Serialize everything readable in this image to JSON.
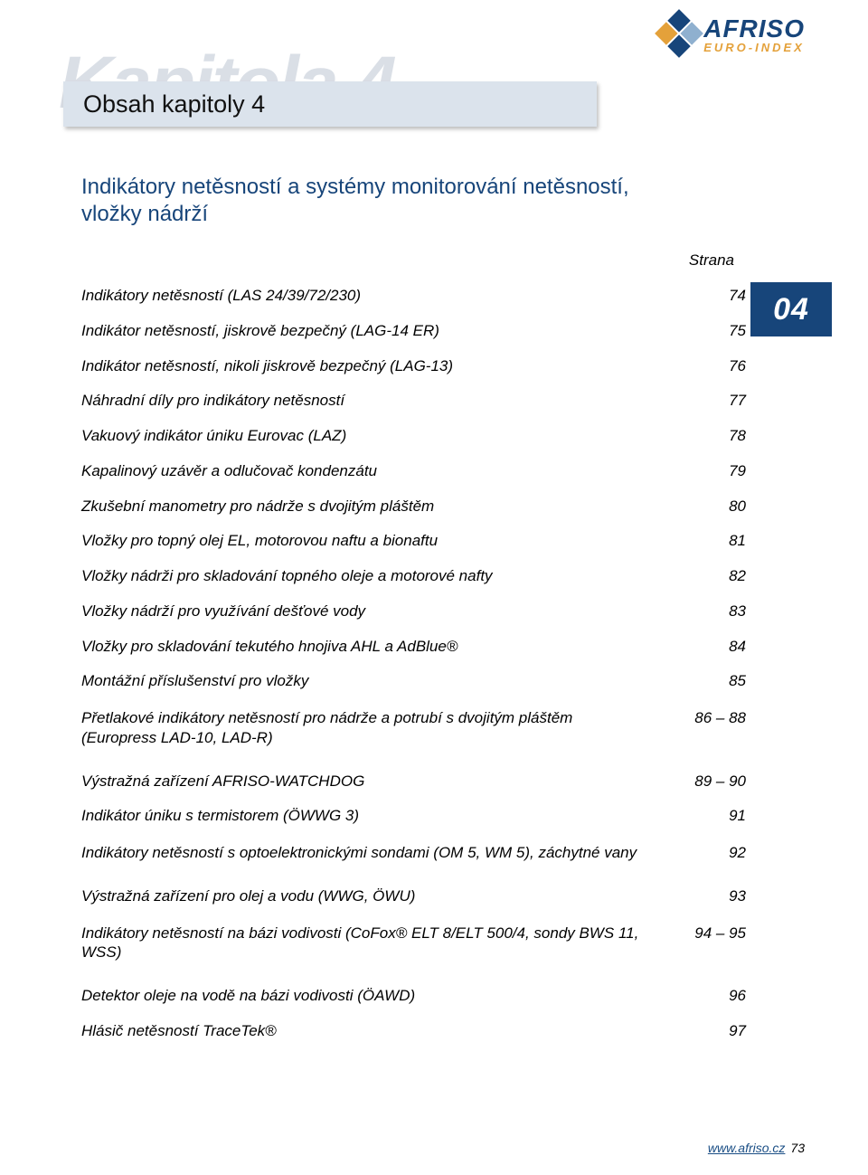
{
  "colors": {
    "brand_blue": "#17457a",
    "brand_orange": "#e4a13a",
    "light_blue": "#8fb0cf",
    "header_bg": "#dbe3ec",
    "kapitola_grey": "#dadfe6",
    "text": "#222222",
    "link": "#1a4e85"
  },
  "logo": {
    "name": "AFRISO",
    "sub": "EURO-INDEX"
  },
  "chapter": {
    "bg_word": "Kapitola 4",
    "title": "Obsah kapitoly 4",
    "tab": "04"
  },
  "section_title": "Indikátory netěsností a systémy monitorování netěsností, vložky nádrží",
  "toc": {
    "header": "Strana",
    "rows": [
      {
        "label": "Indikátory netěsností (LAS 24/39/72/230)",
        "page": "74"
      },
      {
        "label": "Indikátor netěsností, jiskrově bezpečný (LAG-14 ER)",
        "page": "75"
      },
      {
        "label": "Indikátor netěsností, nikoli jiskrově bezpečný (LAG-13)",
        "page": "76"
      },
      {
        "label": "Náhradní díly pro indikátory netěsností",
        "page": "77"
      },
      {
        "label": "Vakuový indikátor úniku Eurovac (LAZ)",
        "page": "78"
      },
      {
        "label": "Kapalinový uzávěr a odlučovač kondenzátu",
        "page": "79"
      },
      {
        "label": "Zkušební manometry pro nádrže s dvojitým pláštěm",
        "page": "80"
      },
      {
        "label": "Vložky pro topný olej EL, motorovou naftu a bionaftu",
        "page": "81"
      },
      {
        "label": "Vložky nádrži pro skladování topného oleje a motorové nafty",
        "page": "82"
      },
      {
        "label": "Vložky nádrží pro využívání dešťové vody",
        "page": "83"
      },
      {
        "label": "Vložky pro skladování tekutého hnojiva AHL a AdBlue®",
        "page": "84"
      },
      {
        "label": "Montážní příslušenství pro vložky",
        "page": "85"
      },
      {
        "label": "Přetlakové indikátory netěsností pro nádrže a potrubí s dvojitým pláštěm (Europress LAD-10, LAD-R)",
        "page": "86 – 88",
        "spaced": true
      },
      {
        "label": "Výstražná zařízení AFRISO-WATCHDOG",
        "page": "89 – 90"
      },
      {
        "label": "Indikátor úniku s termistorem (ÖWWG 3)",
        "page": "91"
      },
      {
        "label": "Indikátory netěsností s optoelektronickými sondami (OM 5, WM 5), záchytné vany",
        "page": "92",
        "spaced": true
      },
      {
        "label": "Výstražná zařízení pro olej a vodu (WWG, ÖWU)",
        "page": "93"
      },
      {
        "label": "Indikátory netěsností na bázi vodivosti (CoFox® ELT 8/ELT 500/4, sondy BWS 11, WSS)",
        "page": "94 – 95",
        "spaced": true
      },
      {
        "label": "Detektor oleje na vodě na bázi vodivosti (ÖAWD)",
        "page": "96"
      },
      {
        "label": "Hlásič netěsností TraceTek®",
        "page": "97"
      }
    ]
  },
  "footer": {
    "url": "www.afriso.cz",
    "page": "73"
  }
}
